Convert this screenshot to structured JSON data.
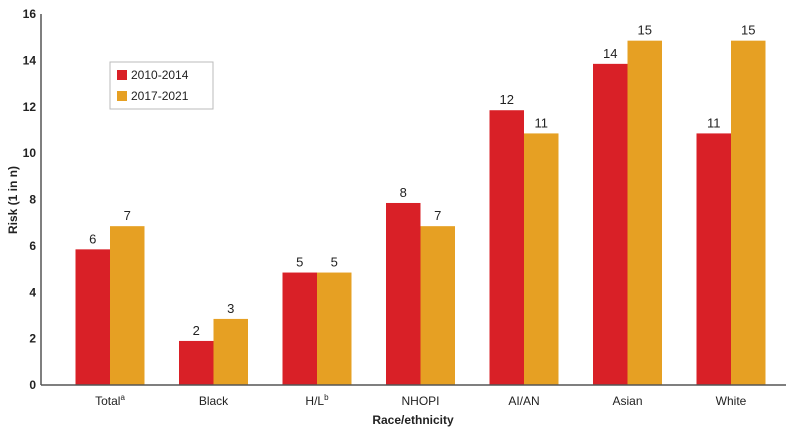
{
  "chart_data": {
    "type": "bar",
    "title": "",
    "xlabel": "Race/ethnicity",
    "ylabel": "Risk (1 in n)",
    "ylim": [
      0,
      16
    ],
    "yticks": [
      0,
      2,
      4,
      6,
      8,
      10,
      12,
      14,
      16
    ],
    "grid": false,
    "legend_position": "top-left",
    "categories": [
      {
        "name": "Total",
        "sup": "a"
      },
      {
        "name": "Black",
        "sup": ""
      },
      {
        "name": "H/L",
        "sup": "b"
      },
      {
        "name": "NHOPI",
        "sup": ""
      },
      {
        "name": "AI/AN",
        "sup": ""
      },
      {
        "name": "Asian",
        "sup": ""
      },
      {
        "name": "White",
        "sup": ""
      }
    ],
    "series": [
      {
        "name": "2010-2014",
        "color": "#d92027",
        "values": [
          5.85,
          1.9,
          4.85,
          7.85,
          11.85,
          13.85,
          10.85
        ],
        "labels": [
          "6",
          "2",
          "5",
          "8",
          "12",
          "14",
          "11"
        ]
      },
      {
        "name": "2017-2021",
        "color": "#e6a023",
        "values": [
          6.85,
          2.85,
          4.85,
          6.85,
          10.85,
          14.85,
          14.85
        ],
        "labels": [
          "7",
          "3",
          "5",
          "7",
          "11",
          "15",
          "15"
        ]
      }
    ]
  }
}
